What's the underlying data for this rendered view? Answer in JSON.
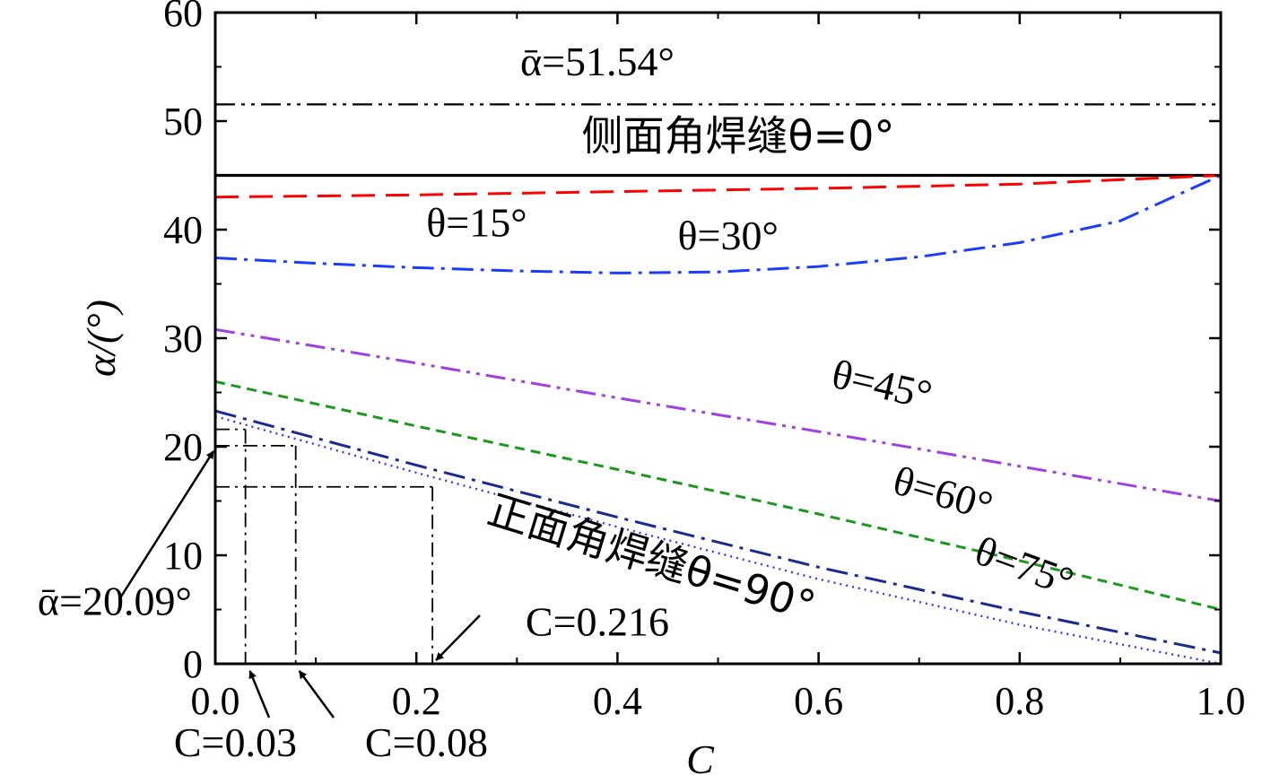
{
  "chart_data": {
    "type": "line",
    "xlabel": "C",
    "ylabel": "α/(°)",
    "xlim": [
      0,
      1
    ],
    "ylim": [
      0,
      60
    ],
    "xticks": [
      0.0,
      0.2,
      0.4,
      0.6,
      0.8,
      1.0
    ],
    "xtick_labels": [
      "0.0",
      "0.2",
      "0.4",
      "0.6",
      "0.8",
      "1.0"
    ],
    "yticks": [
      0,
      10,
      20,
      30,
      40,
      50,
      60
    ],
    "ytick_labels": [
      "0",
      "10",
      "20",
      "30",
      "40",
      "50",
      "60"
    ],
    "grid": false,
    "series": [
      {
        "name": "侧面角焊缝θ=0°",
        "color": "#000000",
        "dash": "solid",
        "points": [
          [
            0,
            45
          ],
          [
            1,
            45
          ]
        ]
      },
      {
        "name": "θ=15°",
        "color": "#ff0000",
        "dash": "dashed",
        "points": [
          [
            0,
            43.0
          ],
          [
            0.2,
            43.2
          ],
          [
            0.4,
            43.5
          ],
          [
            0.6,
            43.8
          ],
          [
            0.8,
            44.2
          ],
          [
            1.0,
            45.0
          ]
        ]
      },
      {
        "name": "θ=30°",
        "color": "#1a3cff",
        "dash": "dashdot",
        "points": [
          [
            0,
            37.4
          ],
          [
            0.1,
            36.9
          ],
          [
            0.2,
            36.5
          ],
          [
            0.3,
            36.2
          ],
          [
            0.4,
            36.0
          ],
          [
            0.5,
            36.1
          ],
          [
            0.6,
            36.6
          ],
          [
            0.7,
            37.5
          ],
          [
            0.8,
            38.8
          ],
          [
            0.9,
            40.8
          ],
          [
            1.0,
            45.0
          ]
        ]
      },
      {
        "name": "θ=45°",
        "color": "#a040e0",
        "dash": "dashdotdot",
        "points": [
          [
            0,
            30.8
          ],
          [
            0.2,
            27.7
          ],
          [
            0.4,
            24.5
          ],
          [
            0.6,
            21.4
          ],
          [
            0.8,
            18.2
          ],
          [
            1.0,
            15.0
          ]
        ]
      },
      {
        "name": "θ=60°",
        "color": "#1a9a1a",
        "dash": "shortdash",
        "points": [
          [
            0,
            26.0
          ],
          [
            0.2,
            21.9
          ],
          [
            0.4,
            17.9
          ],
          [
            0.6,
            13.8
          ],
          [
            0.8,
            9.5
          ],
          [
            1.0,
            5.0
          ]
        ]
      },
      {
        "name": "θ=75°",
        "color": "#1a2a90",
        "dash": "dashdot",
        "points": [
          [
            0,
            23.3
          ],
          [
            0.2,
            18.3
          ],
          [
            0.4,
            13.5
          ],
          [
            0.6,
            8.9
          ],
          [
            0.8,
            4.8
          ],
          [
            1.0,
            1.0
          ]
        ]
      },
      {
        "name": "正面角焊缝θ=90°",
        "color": "#3333ff",
        "dash": "dotted",
        "points": [
          [
            0,
            22.8
          ],
          [
            0.2,
            17.6
          ],
          [
            0.4,
            12.6
          ],
          [
            0.6,
            7.8
          ],
          [
            0.8,
            3.6
          ],
          [
            1.0,
            0.0
          ]
        ]
      }
    ],
    "reference_lines": [
      {
        "label": "ᾱ=51.54°",
        "y": 51.54,
        "style": "dashdotdot"
      },
      {
        "label": "ᾱ=20.09°",
        "y": 20.09
      }
    ],
    "c_markers": [
      {
        "label": "C=0.03",
        "x": 0.03,
        "y": 21.6
      },
      {
        "label": "C=0.08",
        "x": 0.08,
        "y": 20.09
      },
      {
        "label": "C=0.216",
        "x": 0.216,
        "y": 16.3
      }
    ],
    "annotations": [
      {
        "key": "abar_top",
        "text": "ᾱ=51.54°",
        "x": 0.38,
        "y": 54.2
      },
      {
        "key": "theta0",
        "text": "侧面角焊缝θ=0°",
        "x": 0.52,
        "y": 47.3
      },
      {
        "key": "theta15",
        "text": "θ=15°",
        "x": 0.26,
        "y": 39.4
      },
      {
        "key": "theta30",
        "text": "θ=30°",
        "x": 0.51,
        "y": 38.2
      },
      {
        "key": "theta45",
        "text": "θ=45°",
        "x": 0.66,
        "y": 24.5,
        "rotate": 13
      },
      {
        "key": "theta60",
        "text": "θ=60°",
        "x": 0.72,
        "y": 14.5,
        "rotate": 16
      },
      {
        "key": "theta75",
        "text": "θ=75°",
        "x": 0.8,
        "y": 7.8,
        "rotate": 20
      },
      {
        "key": "theta90",
        "text": "正面角焊缝θ=90°",
        "x": 0.43,
        "y": 8.5,
        "rotate": 17
      },
      {
        "key": "abar_bot",
        "text": "ᾱ=20.09°",
        "x": -0.1,
        "y": 4.5
      },
      {
        "key": "c216",
        "text": "C=0.216",
        "x": 0.38,
        "y": 2.6
      },
      {
        "key": "c003",
        "text": "C=0.03",
        "x": 0.02,
        "y": -8.5
      },
      {
        "key": "c008",
        "text": "C=0.08",
        "x": 0.21,
        "y": -8.5
      }
    ]
  }
}
